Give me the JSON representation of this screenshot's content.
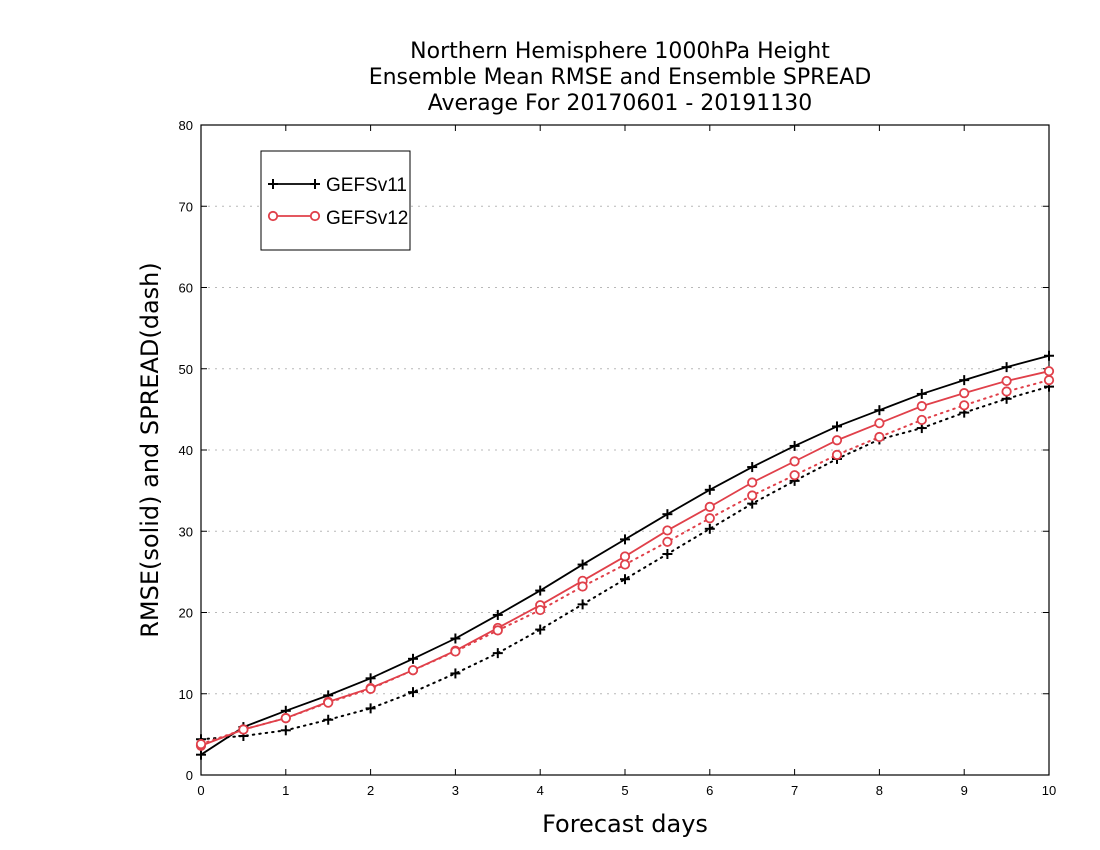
{
  "chart_data": {
    "type": "line",
    "title": [
      "Northern Hemisphere 1000hPa Height",
      "Ensemble Mean RMSE and Ensemble SPREAD",
      "Average For 20170601 - 20191130"
    ],
    "xlabel": "Forecast days",
    "ylabel": "RMSE(solid) and SPREAD(dash)",
    "xlim": [
      0,
      10
    ],
    "ylim": [
      0,
      80
    ],
    "xticks": [
      "0",
      "1",
      "2",
      "3",
      "4",
      "5",
      "6",
      "7",
      "8",
      "9",
      "10"
    ],
    "yticks": [
      "0",
      "10",
      "20",
      "30",
      "40",
      "50",
      "60",
      "70",
      "80"
    ],
    "grid": "horizontal dotted",
    "legend_position": "top-left",
    "x": [
      0,
      0.5,
      1,
      1.5,
      2,
      2.5,
      3,
      3.5,
      4,
      4.5,
      5,
      5.5,
      6,
      6.5,
      7,
      7.5,
      8,
      8.5,
      9,
      9.5,
      10
    ],
    "series": [
      {
        "name": "GEFSv11",
        "metric": "RMSE",
        "style": "solid",
        "marker": "plus",
        "color": "#000000",
        "values": [
          2.5,
          5.9,
          7.9,
          9.8,
          11.9,
          14.3,
          16.8,
          19.7,
          22.7,
          25.9,
          29.0,
          32.1,
          35.1,
          37.9,
          40.5,
          42.9,
          44.9,
          46.9,
          48.6,
          50.2,
          51.6
        ]
      },
      {
        "name": "GEFSv11",
        "metric": "SPREAD",
        "style": "dotted",
        "marker": "plus",
        "color": "#000000",
        "values": [
          4.4,
          4.8,
          5.5,
          6.8,
          8.2,
          10.2,
          12.5,
          15.0,
          17.9,
          21.0,
          24.1,
          27.2,
          30.3,
          33.4,
          36.2,
          38.9,
          41.3,
          42.7,
          44.6,
          46.3,
          47.8
        ]
      },
      {
        "name": "GEFSv12",
        "metric": "RMSE",
        "style": "solid",
        "marker": "circle",
        "color": "#e0404a",
        "values": [
          3.6,
          5.6,
          7.0,
          9.0,
          10.7,
          12.9,
          15.3,
          18.1,
          20.9,
          23.9,
          26.9,
          30.1,
          33.0,
          36.0,
          38.6,
          41.2,
          43.3,
          45.4,
          47.0,
          48.5,
          49.7
        ]
      },
      {
        "name": "GEFSv12",
        "metric": "SPREAD",
        "style": "dotted",
        "marker": "circle",
        "color": "#e0404a",
        "values": [
          3.8,
          5.6,
          7.0,
          8.9,
          10.6,
          12.9,
          15.2,
          17.8,
          20.3,
          23.2,
          25.9,
          28.7,
          31.6,
          34.4,
          36.9,
          39.4,
          41.6,
          43.7,
          45.5,
          47.2,
          48.6
        ]
      }
    ],
    "legend": [
      {
        "label": "GEFSv11",
        "marker": "plus",
        "color": "#000000"
      },
      {
        "label": "GEFSv12",
        "marker": "circle",
        "color": "#e0404a"
      }
    ]
  }
}
